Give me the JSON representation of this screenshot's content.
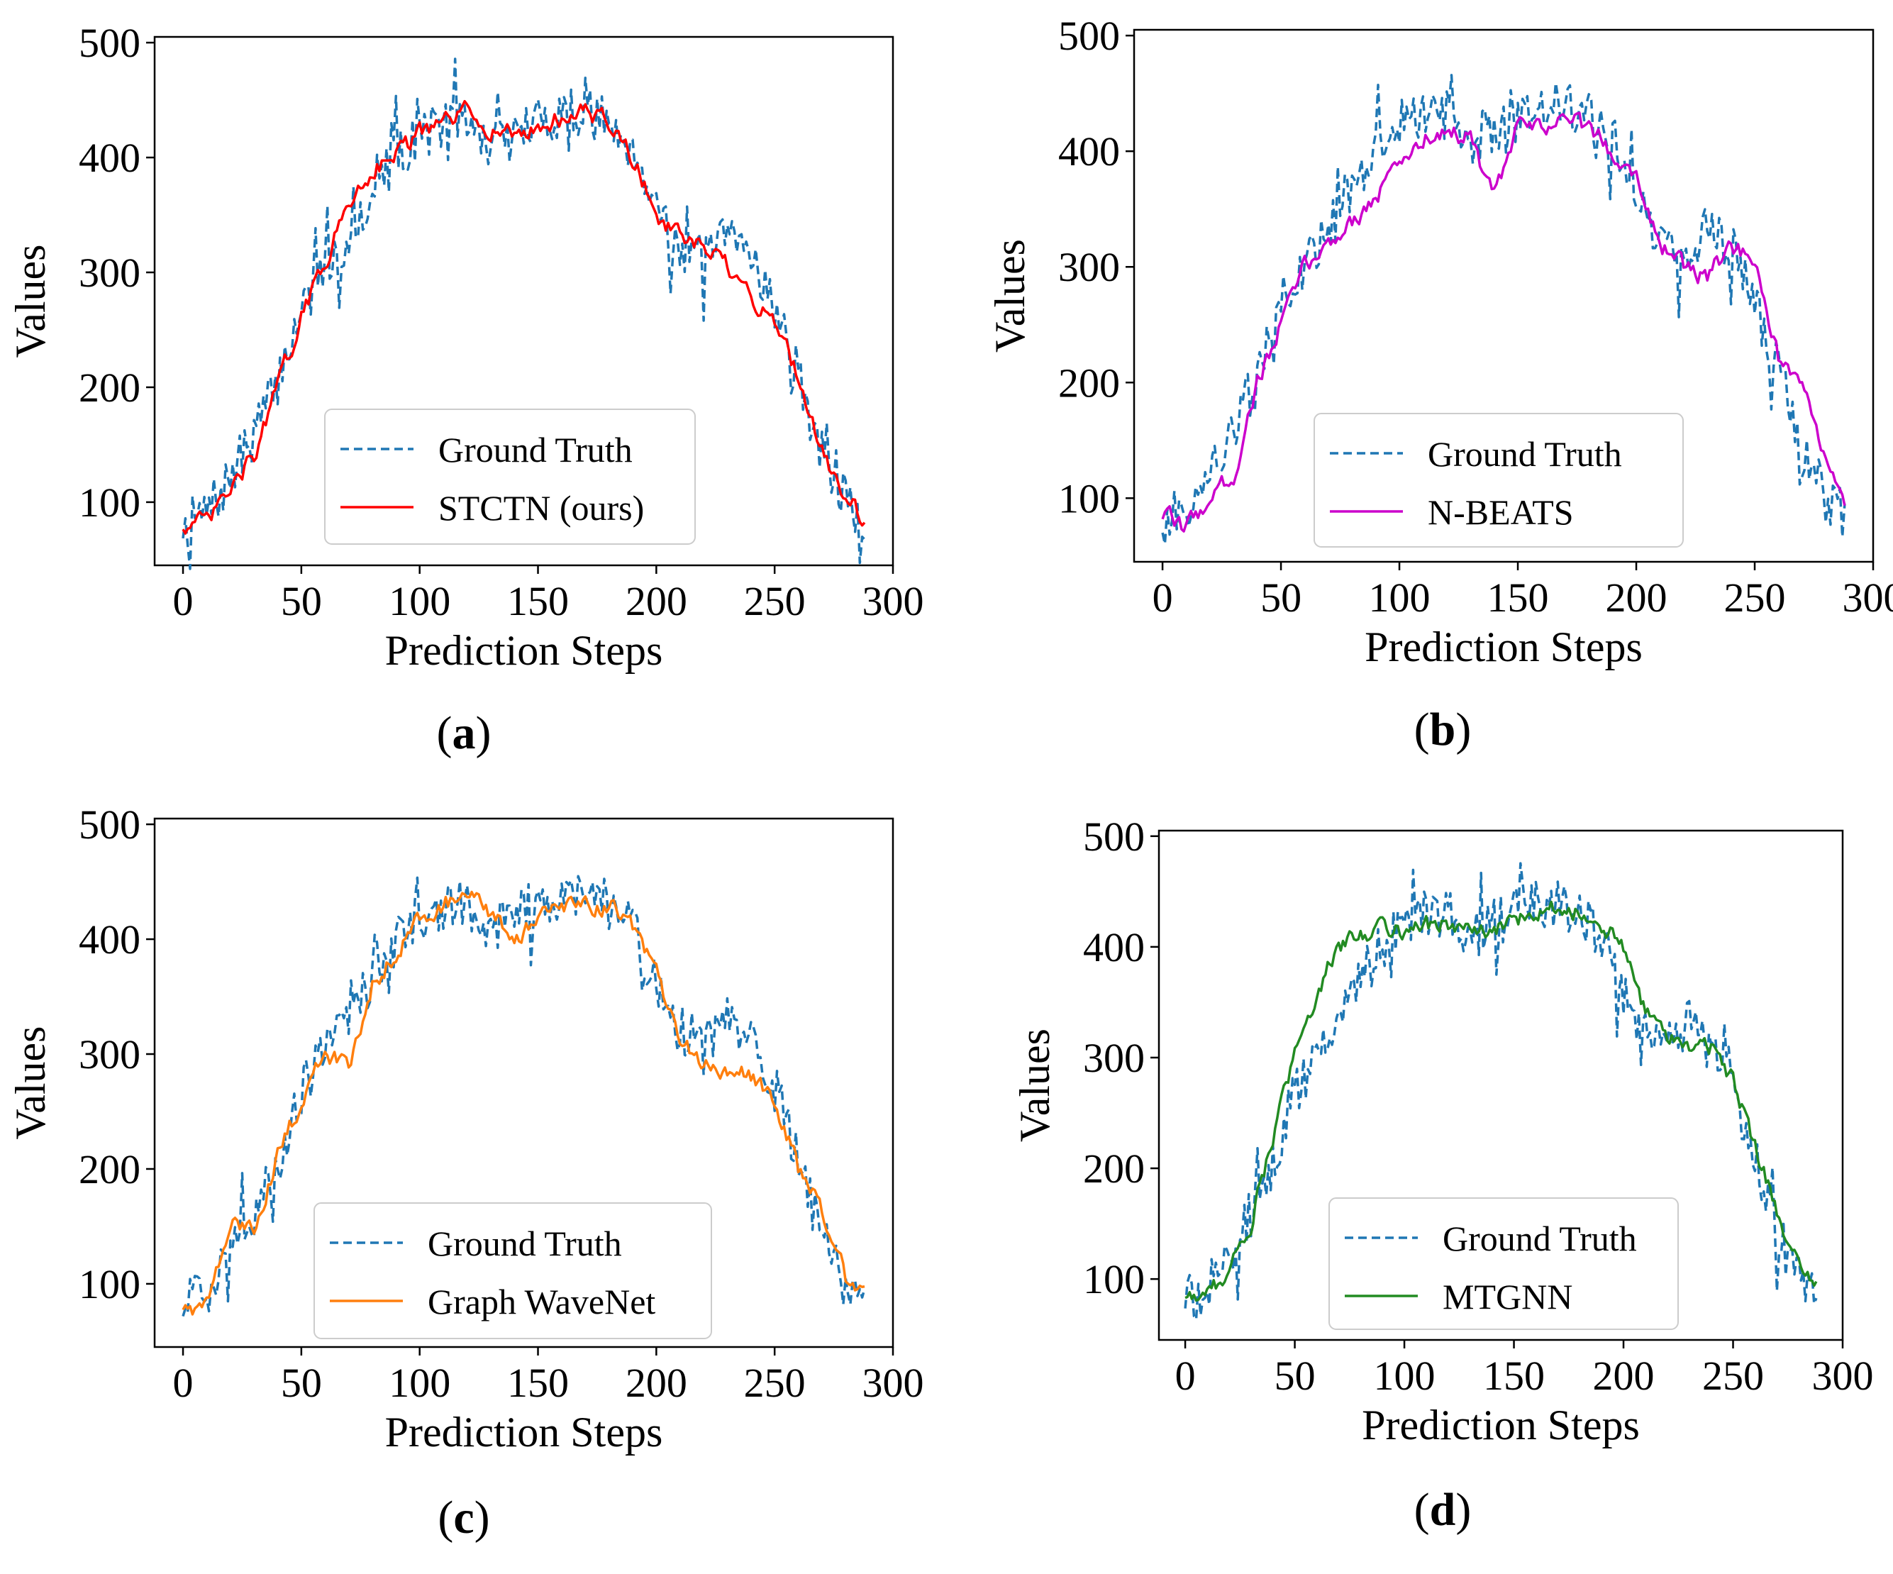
{
  "chart_data": [
    {
      "type": "line",
      "caption": "a",
      "xlabel": "Prediction Steps",
      "ylabel": "Values",
      "xlim": [
        -12,
        300
      ],
      "ylim": [
        45,
        505
      ],
      "xticks": [
        0,
        50,
        100,
        150,
        200,
        250,
        300
      ],
      "yticks": [
        100,
        200,
        300,
        400,
        500
      ],
      "legend_position": "lower-center",
      "series": [
        {
          "name": "Ground Truth",
          "color": "#1f77b4",
          "style": "dashed",
          "anchors": [
            [
              0,
              80
            ],
            [
              10,
              90
            ],
            [
              20,
              120
            ],
            [
              30,
              160
            ],
            [
              40,
              205
            ],
            [
              50,
              270
            ],
            [
              60,
              300
            ],
            [
              70,
              330
            ],
            [
              80,
              370
            ],
            [
              90,
              400
            ],
            [
              100,
              420
            ],
            [
              110,
              430
            ],
            [
              120,
              430
            ],
            [
              130,
              410
            ],
            [
              140,
              420
            ],
            [
              150,
              430
            ],
            [
              160,
              440
            ],
            [
              170,
              440
            ],
            [
              180,
              430
            ],
            [
              190,
              410
            ],
            [
              200,
              360
            ],
            [
              210,
              320
            ],
            [
              220,
              310
            ],
            [
              230,
              330
            ],
            [
              240,
              320
            ],
            [
              250,
              270
            ],
            [
              260,
              210
            ],
            [
              270,
              140
            ],
            [
              280,
              100
            ],
            [
              288,
              85
            ]
          ]
        },
        {
          "name": "STCTN (ours)",
          "color": "#ff0000",
          "style": "solid",
          "anchors": [
            [
              0,
              80
            ],
            [
              10,
              82
            ],
            [
              20,
              110
            ],
            [
              30,
              140
            ],
            [
              40,
              200
            ],
            [
              50,
              260
            ],
            [
              60,
              310
            ],
            [
              70,
              360
            ],
            [
              80,
              390
            ],
            [
              90,
              405
            ],
            [
              100,
              420
            ],
            [
              110,
              430
            ],
            [
              120,
              440
            ],
            [
              130,
              425
            ],
            [
              140,
              420
            ],
            [
              150,
              425
            ],
            [
              160,
              435
            ],
            [
              170,
              440
            ],
            [
              180,
              430
            ],
            [
              190,
              400
            ],
            [
              200,
              350
            ],
            [
              210,
              330
            ],
            [
              220,
              320
            ],
            [
              230,
              305
            ],
            [
              240,
              275
            ],
            [
              250,
              260
            ],
            [
              260,
              210
            ],
            [
              270,
              145
            ],
            [
              280,
              105
            ],
            [
              288,
              85
            ]
          ]
        }
      ]
    },
    {
      "type": "line",
      "caption": "b",
      "xlabel": "Prediction Steps",
      "ylabel": "Values",
      "xlim": [
        -12,
        300
      ],
      "ylim": [
        45,
        505
      ],
      "xticks": [
        0,
        50,
        100,
        150,
        200,
        250,
        300
      ],
      "yticks": [
        100,
        200,
        300,
        400,
        500
      ],
      "legend_position": "lower-center",
      "series": [
        {
          "name": "Ground Truth",
          "color": "#1f77b4",
          "style": "dashed",
          "anchors": [
            [
              0,
              80
            ],
            [
              10,
              90
            ],
            [
              20,
              120
            ],
            [
              30,
              160
            ],
            [
              40,
              205
            ],
            [
              50,
              270
            ],
            [
              60,
              300
            ],
            [
              70,
              330
            ],
            [
              80,
              370
            ],
            [
              90,
              400
            ],
            [
              100,
              420
            ],
            [
              110,
              430
            ],
            [
              120,
              430
            ],
            [
              130,
              410
            ],
            [
              140,
              420
            ],
            [
              150,
              430
            ],
            [
              160,
              440
            ],
            [
              170,
              440
            ],
            [
              180,
              430
            ],
            [
              190,
              410
            ],
            [
              200,
              360
            ],
            [
              210,
              320
            ],
            [
              220,
              310
            ],
            [
              230,
              330
            ],
            [
              240,
              320
            ],
            [
              250,
              270
            ],
            [
              260,
              210
            ],
            [
              270,
              140
            ],
            [
              280,
              100
            ],
            [
              288,
              85
            ]
          ]
        },
        {
          "name": "N-BEATS",
          "color": "#cc00cc",
          "style": "solid",
          "anchors": [
            [
              0,
              85
            ],
            [
              10,
              75
            ],
            [
              20,
              100
            ],
            [
              30,
              120
            ],
            [
              40,
              200
            ],
            [
              50,
              250
            ],
            [
              60,
              300
            ],
            [
              70,
              320
            ],
            [
              80,
              340
            ],
            [
              90,
              360
            ],
            [
              100,
              390
            ],
            [
              110,
              410
            ],
            [
              120,
              420
            ],
            [
              130,
              410
            ],
            [
              140,
              360
            ],
            [
              150,
              420
            ],
            [
              160,
              420
            ],
            [
              170,
              430
            ],
            [
              180,
              420
            ],
            [
              190,
              400
            ],
            [
              200,
              380
            ],
            [
              210,
              320
            ],
            [
              220,
              300
            ],
            [
              230,
              290
            ],
            [
              240,
              320
            ],
            [
              250,
              300
            ],
            [
              260,
              220
            ],
            [
              270,
              190
            ],
            [
              280,
              140
            ],
            [
              288,
              85
            ]
          ]
        }
      ]
    },
    {
      "type": "line",
      "caption": "c",
      "xlabel": "Prediction Steps",
      "ylabel": "Values",
      "xlim": [
        -12,
        300
      ],
      "ylim": [
        45,
        505
      ],
      "xticks": [
        0,
        50,
        100,
        150,
        200,
        250,
        300
      ],
      "yticks": [
        100,
        200,
        300,
        400,
        500
      ],
      "legend_position": "lower-center",
      "series": [
        {
          "name": "Ground Truth",
          "color": "#1f77b4",
          "style": "dashed",
          "anchors": [
            [
              0,
              80
            ],
            [
              10,
              90
            ],
            [
              20,
              120
            ],
            [
              30,
              160
            ],
            [
              40,
              205
            ],
            [
              50,
              270
            ],
            [
              60,
              300
            ],
            [
              70,
              330
            ],
            [
              80,
              370
            ],
            [
              90,
              400
            ],
            [
              100,
              420
            ],
            [
              110,
              430
            ],
            [
              120,
              430
            ],
            [
              130,
              410
            ],
            [
              140,
              420
            ],
            [
              150,
              430
            ],
            [
              160,
              440
            ],
            [
              170,
              440
            ],
            [
              180,
              430
            ],
            [
              190,
              410
            ],
            [
              200,
              360
            ],
            [
              210,
              320
            ],
            [
              220,
              310
            ],
            [
              230,
              330
            ],
            [
              240,
              320
            ],
            [
              250,
              270
            ],
            [
              260,
              210
            ],
            [
              270,
              140
            ],
            [
              280,
              100
            ],
            [
              288,
              85
            ]
          ]
        },
        {
          "name": "Graph WaveNet",
          "color": "#ff7f0e",
          "style": "solid",
          "anchors": [
            [
              0,
              80
            ],
            [
              10,
              80
            ],
            [
              20,
              150
            ],
            [
              30,
              150
            ],
            [
              40,
              210
            ],
            [
              50,
              260
            ],
            [
              60,
              300
            ],
            [
              70,
              290
            ],
            [
              80,
              360
            ],
            [
              90,
              390
            ],
            [
              100,
              420
            ],
            [
              110,
              430
            ],
            [
              120,
              440
            ],
            [
              130,
              420
            ],
            [
              140,
              400
            ],
            [
              150,
              420
            ],
            [
              160,
              425
            ],
            [
              170,
              430
            ],
            [
              180,
              430
            ],
            [
              190,
              410
            ],
            [
              200,
              370
            ],
            [
              210,
              310
            ],
            [
              220,
              290
            ],
            [
              230,
              285
            ],
            [
              240,
              280
            ],
            [
              250,
              260
            ],
            [
              260,
              200
            ],
            [
              270,
              165
            ],
            [
              280,
              105
            ],
            [
              288,
              90
            ]
          ]
        }
      ]
    },
    {
      "type": "line",
      "caption": "d",
      "xlabel": "Prediction Steps",
      "ylabel": "Values",
      "xlim": [
        -12,
        300
      ],
      "ylim": [
        45,
        505
      ],
      "xticks": [
        0,
        50,
        100,
        150,
        200,
        250,
        300
      ],
      "yticks": [
        100,
        200,
        300,
        400,
        500
      ],
      "legend_position": "lower-center",
      "series": [
        {
          "name": "Ground Truth",
          "color": "#1f77b4",
          "style": "dashed",
          "anchors": [
            [
              0,
              80
            ],
            [
              10,
              90
            ],
            [
              20,
              120
            ],
            [
              30,
              160
            ],
            [
              40,
              205
            ],
            [
              50,
              270
            ],
            [
              60,
              300
            ],
            [
              70,
              330
            ],
            [
              80,
              370
            ],
            [
              90,
              400
            ],
            [
              100,
              420
            ],
            [
              110,
              430
            ],
            [
              120,
              430
            ],
            [
              130,
              410
            ],
            [
              140,
              420
            ],
            [
              150,
              430
            ],
            [
              160,
              440
            ],
            [
              170,
              440
            ],
            [
              180,
              430
            ],
            [
              190,
              410
            ],
            [
              200,
              360
            ],
            [
              210,
              320
            ],
            [
              220,
              310
            ],
            [
              230,
              330
            ],
            [
              240,
              320
            ],
            [
              250,
              270
            ],
            [
              260,
              210
            ],
            [
              270,
              140
            ],
            [
              280,
              100
            ],
            [
              288,
              85
            ]
          ]
        },
        {
          "name": "MTGNN",
          "color": "#228b22",
          "style": "solid",
          "anchors": [
            [
              0,
              85
            ],
            [
              10,
              85
            ],
            [
              20,
              110
            ],
            [
              30,
              150
            ],
            [
              40,
              230
            ],
            [
              50,
              300
            ],
            [
              60,
              360
            ],
            [
              70,
              400
            ],
            [
              80,
              410
            ],
            [
              90,
              420
            ],
            [
              100,
              415
            ],
            [
              110,
              420
            ],
            [
              120,
              420
            ],
            [
              130,
              415
            ],
            [
              140,
              410
            ],
            [
              150,
              425
            ],
            [
              160,
              430
            ],
            [
              170,
              440
            ],
            [
              180,
              430
            ],
            [
              190,
              420
            ],
            [
              200,
              400
            ],
            [
              210,
              340
            ],
            [
              220,
              320
            ],
            [
              230,
              310
            ],
            [
              240,
              310
            ],
            [
              250,
              280
            ],
            [
              260,
              220
            ],
            [
              270,
              160
            ],
            [
              280,
              110
            ],
            [
              288,
              90
            ]
          ]
        }
      ]
    }
  ]
}
